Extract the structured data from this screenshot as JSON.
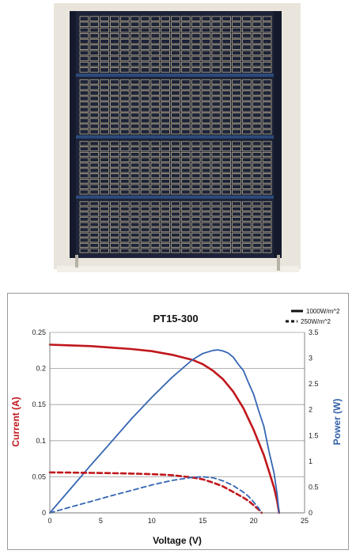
{
  "photo": {
    "subject": "solar-panel-photo"
  },
  "chart_data": {
    "type": "line",
    "title": "PT15-300",
    "xlabel": "Voltage (V)",
    "ylabel": "Current (A)",
    "y2label": "Power (W)",
    "xlim": [
      0,
      25
    ],
    "ylim": [
      0,
      0.25
    ],
    "y2lim": [
      0,
      3.5
    ],
    "x_ticks": [
      "0",
      "5",
      "10",
      "15",
      "20",
      "25"
    ],
    "y_ticks": [
      "0",
      "0.05",
      "0.1",
      "0.15",
      "0.2",
      "0.25"
    ],
    "y2_ticks": [
      "0",
      "0.5",
      "1",
      "1.5",
      "2",
      "2.5",
      "3",
      "3.5"
    ],
    "grid": "horizontal",
    "legend_position": "top-right",
    "legend": [
      {
        "label": "1000W/m^2",
        "style": "solid"
      },
      {
        "label": "250W/m^2",
        "style": "dashed"
      }
    ],
    "colors": {
      "current": "#c0171c",
      "power": "#3566b3"
    },
    "series": [
      {
        "quantity": "current",
        "irradiance_index": 0,
        "axis": "left",
        "style": "solid",
        "x": [
          0,
          2,
          4,
          6,
          8,
          10,
          12,
          14,
          15,
          16,
          17,
          18,
          19,
          20,
          21,
          21.5,
          22,
          22.3,
          22.5
        ],
        "y": [
          0.233,
          0.232,
          0.231,
          0.229,
          0.227,
          0.224,
          0.219,
          0.212,
          0.206,
          0.197,
          0.185,
          0.168,
          0.145,
          0.115,
          0.08,
          0.058,
          0.035,
          0.017,
          0
        ]
      },
      {
        "quantity": "power",
        "irradiance_index": 0,
        "axis": "right",
        "style": "solid",
        "x": [
          0,
          2,
          4,
          6,
          8,
          10,
          12,
          14,
          15,
          16,
          16.5,
          17,
          17.5,
          18,
          18.5,
          19,
          19.5,
          20,
          20.5,
          21,
          21.5,
          22,
          22.3,
          22.5
        ],
        "y": [
          0,
          0.46,
          0.92,
          1.37,
          1.82,
          2.24,
          2.63,
          2.97,
          3.09,
          3.15,
          3.16,
          3.14,
          3.1,
          3.02,
          2.88,
          2.76,
          2.52,
          2.3,
          1.98,
          1.68,
          1.2,
          0.77,
          0.38,
          0
        ]
      },
      {
        "quantity": "current",
        "irradiance_index": 1,
        "axis": "left",
        "style": "dashed",
        "x": [
          0,
          2,
          4,
          6,
          8,
          10,
          12,
          14,
          15,
          16,
          17,
          18,
          19,
          19.5,
          20,
          20.5,
          20.8
        ],
        "y": [
          0.056,
          0.0558,
          0.0554,
          0.055,
          0.0544,
          0.0536,
          0.0522,
          0.049,
          0.0465,
          0.042,
          0.0365,
          0.029,
          0.021,
          0.0165,
          0.0105,
          0.0045,
          0
        ]
      },
      {
        "quantity": "power",
        "irradiance_index": 1,
        "axis": "right",
        "style": "dashed",
        "x": [
          0,
          2,
          4,
          6,
          8,
          10,
          12,
          14,
          15,
          16,
          17,
          18,
          19,
          19.5,
          20,
          20.5,
          20.8
        ],
        "y": [
          0,
          0.11,
          0.22,
          0.33,
          0.435,
          0.54,
          0.63,
          0.69,
          0.7,
          0.68,
          0.62,
          0.53,
          0.4,
          0.32,
          0.21,
          0.09,
          0
        ]
      }
    ]
  }
}
